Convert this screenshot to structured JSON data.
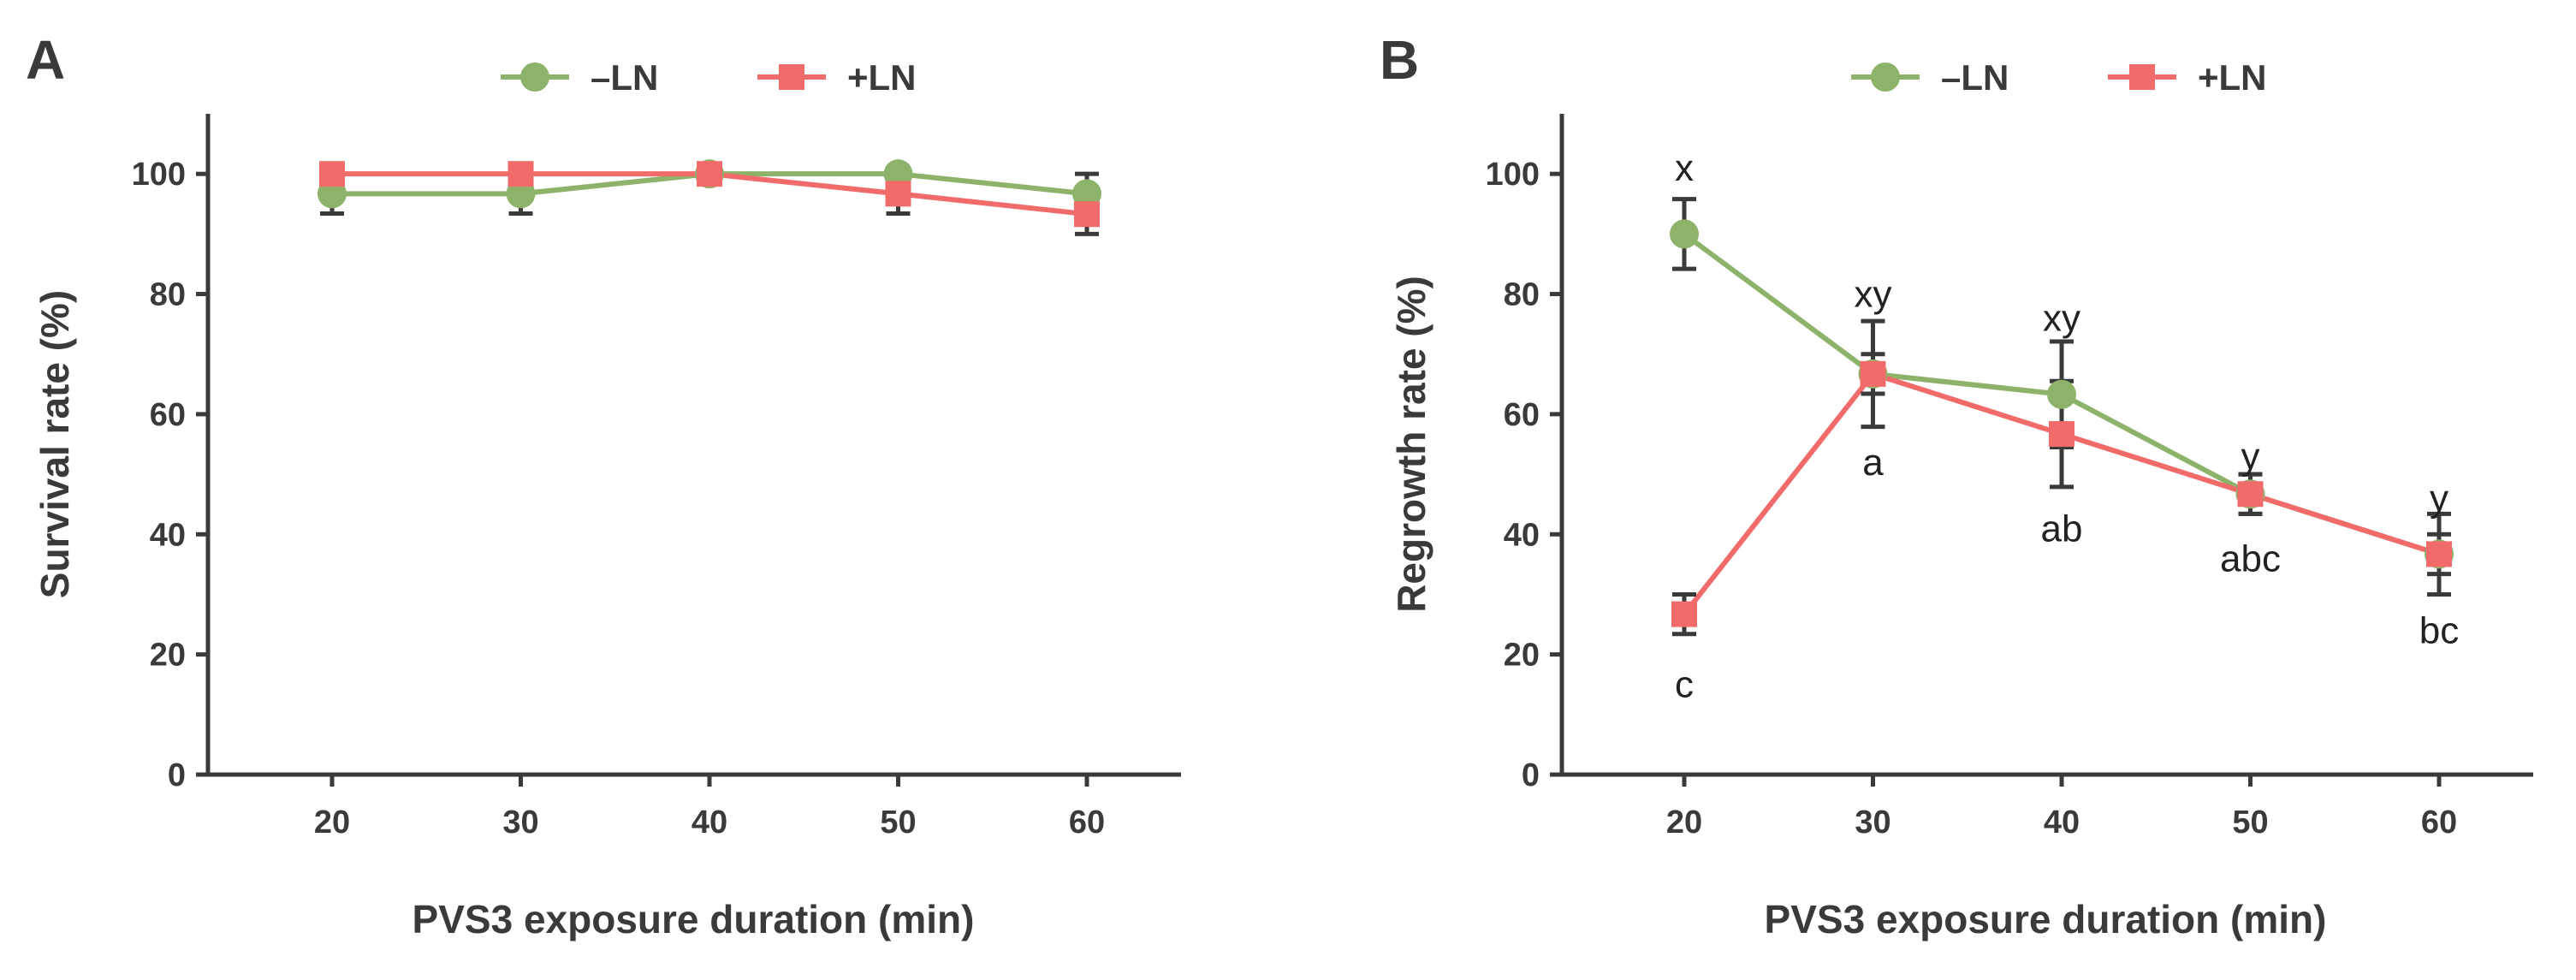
{
  "colors": {
    "minus_ln": "#8db36a",
    "plus_ln": "#f26b6b",
    "axis": "#3a3a3a"
  },
  "chart_data": [
    {
      "id": "A",
      "type": "line",
      "panel_label": "A",
      "xlabel": "PVS3 exposure duration (min)",
      "ylabel": "Survival rate (%)",
      "x": [
        20,
        30,
        40,
        50,
        60
      ],
      "xticks": [
        "20",
        "30",
        "40",
        "50",
        "60"
      ],
      "ylim": [
        0,
        110
      ],
      "yticks": [
        "0",
        "20",
        "40",
        "60",
        "80",
        "100"
      ],
      "legend_position": "top-center",
      "series": [
        {
          "name": "–LN",
          "marker": "circle",
          "values": [
            96.7,
            96.7,
            100,
            100,
            96.7
          ],
          "errors": [
            3.3,
            3.3,
            0,
            0,
            3.3
          ]
        },
        {
          "name": "+LN",
          "marker": "square",
          "values": [
            100,
            100,
            100,
            96.7,
            93.3
          ],
          "errors": [
            0,
            0,
            0,
            3.3,
            3.3
          ]
        }
      ],
      "annotations": []
    },
    {
      "id": "B",
      "type": "line",
      "panel_label": "B",
      "xlabel": "PVS3 exposure duration (min)",
      "ylabel": "Regrowth rate (%)",
      "x": [
        20,
        30,
        40,
        50,
        60
      ],
      "xticks": [
        "20",
        "30",
        "40",
        "50",
        "60"
      ],
      "ylim": [
        0,
        110
      ],
      "yticks": [
        "0",
        "20",
        "40",
        "60",
        "80",
        "100"
      ],
      "legend_position": "top-center",
      "series": [
        {
          "name": "–LN",
          "marker": "circle",
          "values": [
            90,
            66.7,
            63.3,
            46.7,
            36.7
          ],
          "errors": [
            5.8,
            8.8,
            8.8,
            3.3,
            6.7
          ]
        },
        {
          "name": "+LN",
          "marker": "square",
          "values": [
            26.7,
            66.7,
            56.7,
            46.7,
            36.7
          ],
          "errors": [
            3.3,
            3.3,
            8.8,
            3.3,
            3.3
          ]
        }
      ],
      "annotations": [
        {
          "text": "x",
          "x": 20,
          "y": 101,
          "series": "–LN"
        },
        {
          "text": "xy",
          "x": 30,
          "y": 80,
          "series": "–LN"
        },
        {
          "text": "xy",
          "x": 40,
          "y": 76,
          "series": "–LN"
        },
        {
          "text": "y",
          "x": 50,
          "y": 53,
          "series": "–LN"
        },
        {
          "text": "y",
          "x": 60,
          "y": 46,
          "series": "–LN"
        },
        {
          "text": "c",
          "x": 20,
          "y": 15,
          "series": "+LN"
        },
        {
          "text": "a",
          "x": 30,
          "y": 52,
          "series": "+LN"
        },
        {
          "text": "ab",
          "x": 40,
          "y": 41,
          "series": "+LN"
        },
        {
          "text": "abc",
          "x": 50,
          "y": 36,
          "series": "+LN"
        },
        {
          "text": "bc",
          "x": 60,
          "y": 24,
          "series": "+LN"
        }
      ]
    }
  ]
}
